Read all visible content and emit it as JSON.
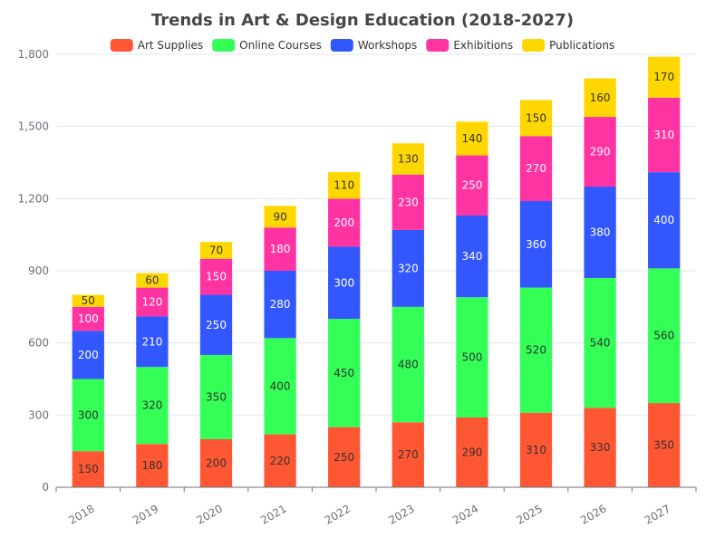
{
  "chart_data": {
    "type": "bar",
    "stacked": true,
    "title": "Trends in Art & Design Education (2018-2027)",
    "xlabel": "",
    "ylabel": "",
    "categories": [
      "2018",
      "2019",
      "2020",
      "2021",
      "2022",
      "2023",
      "2024",
      "2025",
      "2026",
      "2027"
    ],
    "ylim": [
      0,
      1800
    ],
    "yticks": [
      0,
      300,
      600,
      900,
      1200,
      1500,
      1800
    ],
    "ytick_labels": [
      "0",
      "300",
      "600",
      "900",
      "1,200",
      "1,500",
      "1,800"
    ],
    "grid": true,
    "legend_position": "top-center",
    "series": [
      {
        "name": "Art Supplies",
        "color": "#ff5733",
        "label_color": "#333333",
        "values": [
          150,
          180,
          200,
          220,
          250,
          270,
          290,
          310,
          330,
          350
        ]
      },
      {
        "name": "Online Courses",
        "color": "#33ff57",
        "label_color": "#333333",
        "values": [
          300,
          320,
          350,
          400,
          450,
          480,
          500,
          520,
          540,
          560
        ]
      },
      {
        "name": "Workshops",
        "color": "#3357ff",
        "label_color": "#ffffff",
        "values": [
          200,
          210,
          250,
          280,
          300,
          320,
          340,
          360,
          380,
          400
        ]
      },
      {
        "name": "Exhibitions",
        "color": "#ff33a1",
        "label_color": "#ffffff",
        "values": [
          100,
          120,
          150,
          180,
          200,
          230,
          250,
          270,
          290,
          310
        ]
      },
      {
        "name": "Publications",
        "color": "#ffd700",
        "label_color": "#333333",
        "values": [
          50,
          60,
          70,
          90,
          110,
          130,
          140,
          150,
          160,
          170
        ]
      }
    ]
  }
}
